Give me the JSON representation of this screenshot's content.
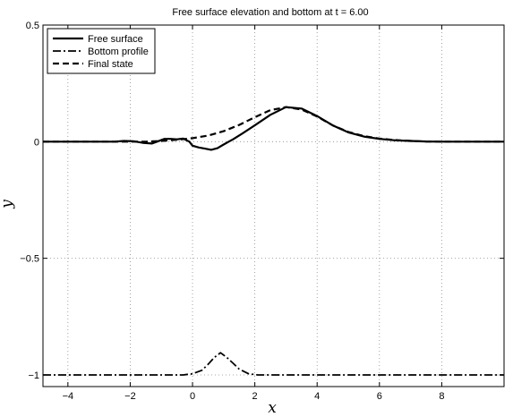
{
  "chart_data": {
    "type": "line",
    "title": "Free surface elevation and bottom at t = 6.00",
    "xlabel": "x",
    "ylabel": "y",
    "xlim": [
      -4.8,
      10
    ],
    "ylim": [
      -1.05,
      0.5
    ],
    "xticks": [
      -4,
      -2,
      0,
      2,
      4,
      6,
      8
    ],
    "yticks": [
      -1,
      -0.5,
      0,
      0.5
    ],
    "grid": true,
    "legend_position": "top-left",
    "series": [
      {
        "name": "Free surface",
        "style": "solid",
        "x": [
          -4.8,
          -2.5,
          -2.2,
          -1.9,
          -1.6,
          -1.3,
          -1.1,
          -0.9,
          -0.7,
          -0.5,
          -0.3,
          -0.1,
          0.0,
          0.2,
          0.4,
          0.6,
          0.8,
          1.0,
          1.3,
          1.6,
          2.0,
          2.5,
          3.0,
          3.5,
          4.0,
          4.5,
          5.0,
          5.5,
          6.0,
          6.5,
          7.0,
          7.5,
          8.0,
          8.5,
          9.0,
          10.0
        ],
        "y": [
          0.0,
          0.0,
          0.003,
          0.002,
          -0.005,
          -0.008,
          0.002,
          0.012,
          0.012,
          0.01,
          0.013,
          0.0,
          -0.017,
          -0.025,
          -0.03,
          -0.035,
          -0.028,
          -0.012,
          0.01,
          0.035,
          0.07,
          0.115,
          0.148,
          0.142,
          0.11,
          0.07,
          0.04,
          0.022,
          0.012,
          0.006,
          0.003,
          0.001,
          0.0,
          0.0,
          0.0,
          0.0
        ]
      },
      {
        "name": "Bottom profile",
        "style": "dashdot",
        "x": [
          -4.8,
          -0.3,
          0.0,
          0.3,
          0.5,
          0.7,
          0.9,
          1.1,
          1.3,
          1.5,
          1.8,
          2.1,
          10.0
        ],
        "y": [
          -1.0,
          -1.0,
          -0.995,
          -0.98,
          -0.955,
          -0.925,
          -0.905,
          -0.925,
          -0.95,
          -0.975,
          -0.995,
          -1.0,
          -1.0
        ]
      },
      {
        "name": "Final state",
        "style": "dashed",
        "x": [
          -4.8,
          -1.5,
          -1.0,
          -0.5,
          0.0,
          0.5,
          1.0,
          1.5,
          2.0,
          2.5,
          3.0,
          3.5,
          4.0,
          4.5,
          5.0,
          5.5,
          6.0,
          6.5,
          7.0,
          7.5,
          8.0,
          10.0
        ],
        "y": [
          0.0,
          0.0,
          0.003,
          0.008,
          0.015,
          0.026,
          0.045,
          0.072,
          0.105,
          0.135,
          0.148,
          0.138,
          0.108,
          0.07,
          0.042,
          0.024,
          0.013,
          0.007,
          0.003,
          0.001,
          0.0,
          0.0
        ]
      }
    ]
  }
}
